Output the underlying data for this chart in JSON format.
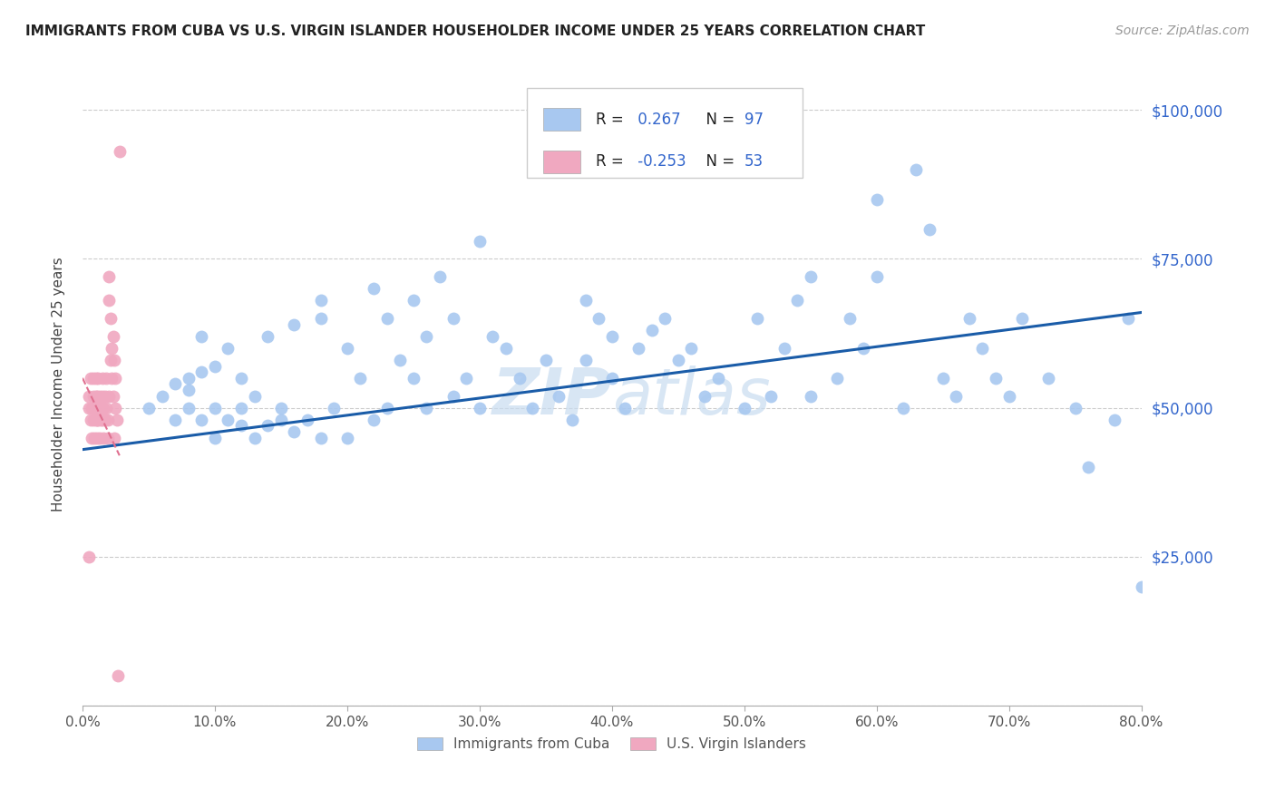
{
  "title": "IMMIGRANTS FROM CUBA VS U.S. VIRGIN ISLANDER HOUSEHOLDER INCOME UNDER 25 YEARS CORRELATION CHART",
  "source": "Source: ZipAtlas.com",
  "ylabel": "Householder Income Under 25 years",
  "xlabel_ticks": [
    "0.0%",
    "10.0%",
    "20.0%",
    "30.0%",
    "40.0%",
    "50.0%",
    "60.0%",
    "70.0%",
    "80.0%"
  ],
  "xlabel_vals": [
    0.0,
    0.1,
    0.2,
    0.3,
    0.4,
    0.5,
    0.6,
    0.7,
    0.8
  ],
  "ytick_vals": [
    0,
    25000,
    50000,
    75000,
    100000
  ],
  "right_ytick_labels": [
    "$25,000",
    "$50,000",
    "$75,000",
    "$100,000"
  ],
  "right_ytick_vals": [
    25000,
    50000,
    75000,
    100000
  ],
  "xlim": [
    0.0,
    0.8
  ],
  "ylim": [
    0,
    108000
  ],
  "legend_blue_label": "Immigrants from Cuba",
  "legend_pink_label": "U.S. Virgin Islanders",
  "corr_blue_R": "0.267",
  "corr_blue_N": "97",
  "corr_pink_R": "-0.253",
  "corr_pink_N": "53",
  "blue_color": "#A8C8F0",
  "pink_color": "#F0A8C0",
  "trendline_blue_color": "#1A5CA8",
  "trendline_pink_color": "#E07090",
  "watermark_color": "#C8DCF0",
  "blue_scatter_x": [
    0.05,
    0.06,
    0.07,
    0.07,
    0.08,
    0.08,
    0.08,
    0.09,
    0.09,
    0.09,
    0.1,
    0.1,
    0.1,
    0.11,
    0.11,
    0.12,
    0.12,
    0.12,
    0.13,
    0.13,
    0.14,
    0.14,
    0.15,
    0.15,
    0.16,
    0.16,
    0.17,
    0.18,
    0.18,
    0.18,
    0.19,
    0.2,
    0.2,
    0.21,
    0.22,
    0.22,
    0.23,
    0.23,
    0.24,
    0.25,
    0.25,
    0.26,
    0.26,
    0.27,
    0.28,
    0.28,
    0.29,
    0.3,
    0.3,
    0.31,
    0.32,
    0.33,
    0.34,
    0.35,
    0.36,
    0.37,
    0.38,
    0.38,
    0.39,
    0.4,
    0.4,
    0.41,
    0.42,
    0.43,
    0.44,
    0.45,
    0.46,
    0.47,
    0.48,
    0.5,
    0.51,
    0.52,
    0.53,
    0.54,
    0.55,
    0.55,
    0.57,
    0.58,
    0.59,
    0.6,
    0.6,
    0.62,
    0.63,
    0.64,
    0.65,
    0.66,
    0.67,
    0.68,
    0.69,
    0.7,
    0.71,
    0.73,
    0.75,
    0.76,
    0.78,
    0.79,
    0.8
  ],
  "blue_scatter_y": [
    50000,
    52000,
    48000,
    54000,
    53000,
    50000,
    55000,
    62000,
    56000,
    48000,
    57000,
    45000,
    50000,
    48000,
    60000,
    50000,
    55000,
    47000,
    45000,
    52000,
    47000,
    62000,
    50000,
    48000,
    64000,
    46000,
    48000,
    68000,
    65000,
    45000,
    50000,
    60000,
    45000,
    55000,
    70000,
    48000,
    65000,
    50000,
    58000,
    68000,
    55000,
    62000,
    50000,
    72000,
    65000,
    52000,
    55000,
    78000,
    50000,
    62000,
    60000,
    55000,
    50000,
    58000,
    52000,
    48000,
    68000,
    58000,
    65000,
    62000,
    55000,
    50000,
    60000,
    63000,
    65000,
    58000,
    60000,
    52000,
    55000,
    50000,
    65000,
    52000,
    60000,
    68000,
    72000,
    52000,
    55000,
    65000,
    60000,
    85000,
    72000,
    50000,
    90000,
    80000,
    55000,
    52000,
    65000,
    60000,
    55000,
    52000,
    65000,
    55000,
    50000,
    40000,
    48000,
    65000,
    20000
  ],
  "pink_scatter_x": [
    0.005,
    0.005,
    0.005,
    0.006,
    0.006,
    0.007,
    0.007,
    0.008,
    0.008,
    0.008,
    0.009,
    0.009,
    0.01,
    0.01,
    0.01,
    0.01,
    0.011,
    0.011,
    0.011,
    0.012,
    0.012,
    0.012,
    0.013,
    0.013,
    0.014,
    0.014,
    0.015,
    0.015,
    0.015,
    0.016,
    0.016,
    0.017,
    0.017,
    0.018,
    0.018,
    0.019,
    0.019,
    0.02,
    0.02,
    0.02,
    0.021,
    0.021,
    0.022,
    0.022,
    0.023,
    0.023,
    0.024,
    0.024,
    0.025,
    0.025,
    0.026,
    0.027,
    0.028
  ],
  "pink_scatter_y": [
    25000,
    50000,
    52000,
    48000,
    55000,
    45000,
    50000,
    52000,
    48000,
    55000,
    50000,
    45000,
    52000,
    48000,
    55000,
    50000,
    52000,
    48000,
    45000,
    55000,
    50000,
    48000,
    52000,
    45000,
    50000,
    48000,
    55000,
    52000,
    48000,
    50000,
    45000,
    52000,
    48000,
    55000,
    50000,
    48000,
    45000,
    72000,
    68000,
    52000,
    65000,
    58000,
    60000,
    55000,
    62000,
    52000,
    58000,
    45000,
    55000,
    50000,
    48000,
    5000,
    93000
  ],
  "blue_trend_x": [
    0.0,
    0.8
  ],
  "blue_trend_y": [
    43000,
    66000
  ],
  "pink_trend_x": [
    0.0,
    0.028
  ],
  "pink_trend_y": [
    55000,
    42000
  ]
}
